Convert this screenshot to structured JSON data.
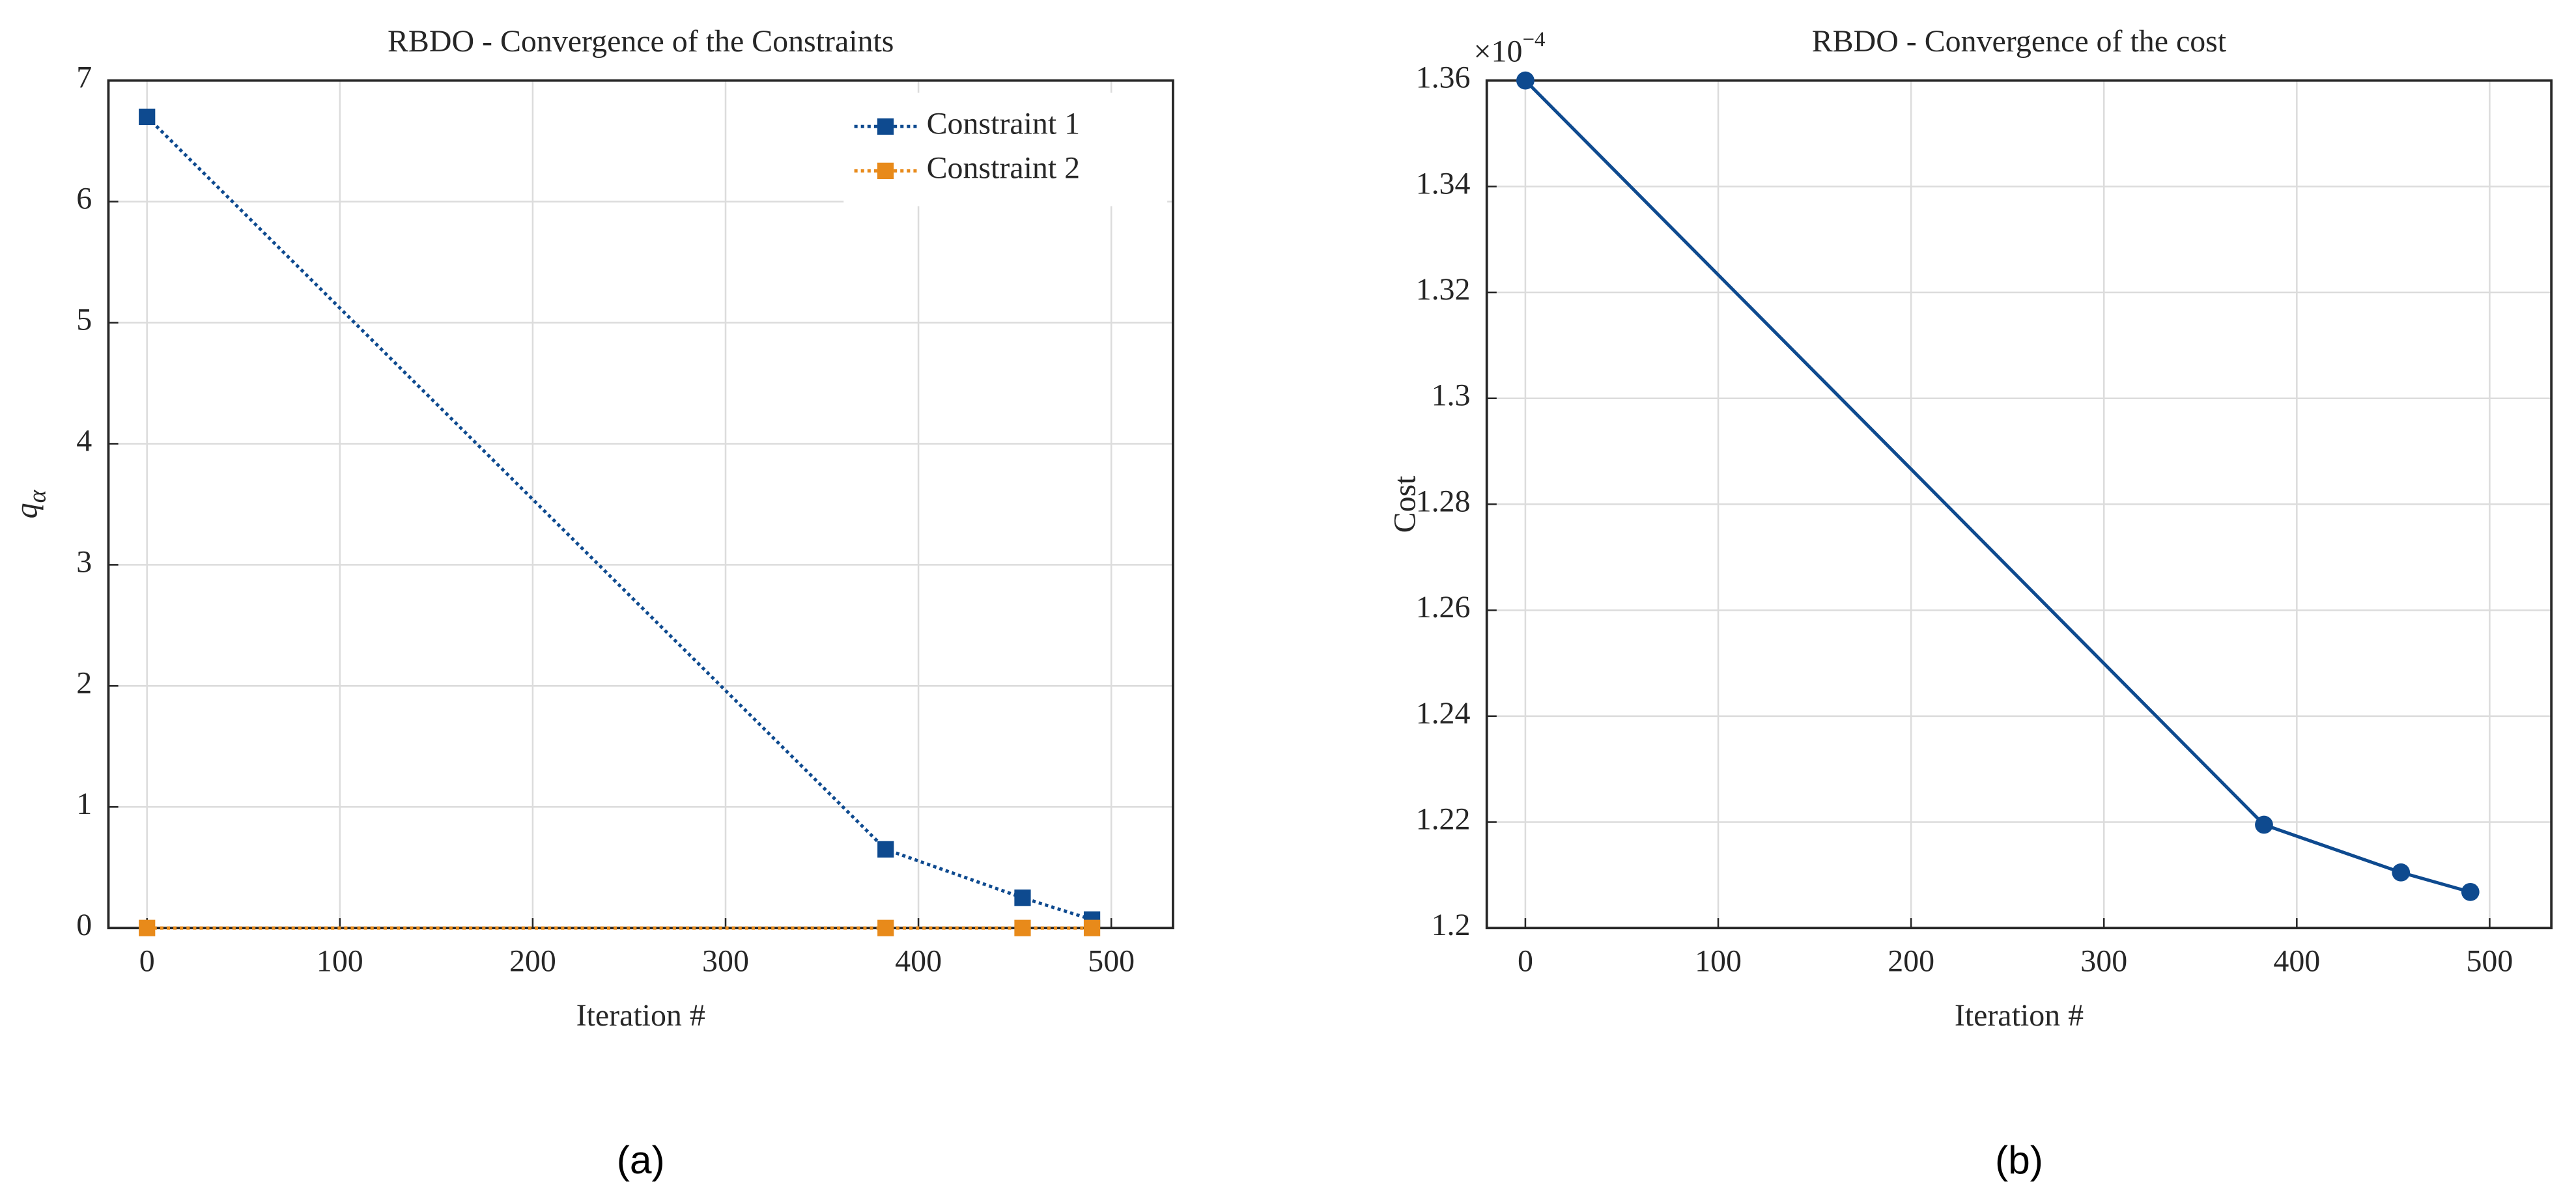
{
  "chart_data": [
    {
      "type": "line",
      "title": "RBDO - Convergence of the Constraints",
      "xlabel": "Iteration #",
      "ylabel": "q",
      "ylabel_subscript": "α",
      "caption": "(a)",
      "x": [
        0,
        383,
        454,
        490
      ],
      "series": [
        {
          "name": "Constraint 1",
          "color": "#0e4a8f",
          "values": [
            6.7,
            0.65,
            0.25,
            0.07
          ]
        },
        {
          "name": "Constraint 2",
          "color": "#e88a1a",
          "values": [
            0,
            0,
            0,
            0
          ]
        }
      ],
      "marker": "square",
      "line_style": "dotted",
      "xlim": [
        -20,
        532
      ],
      "xticks": [
        0,
        100,
        200,
        300,
        400,
        500
      ],
      "ylim": [
        0,
        7
      ],
      "yticks": [
        0,
        1,
        2,
        3,
        4,
        5,
        6,
        7
      ],
      "grid": true,
      "legend": "top-right"
    },
    {
      "type": "line",
      "title": "RBDO - Convergence of the cost",
      "xlabel": "Iteration #",
      "ylabel": "Cost",
      "caption": "(b)",
      "y_multiplier": {
        "base": "×10",
        "exponent": "−4"
      },
      "x": [
        0,
        383,
        454,
        490
      ],
      "series": [
        {
          "color": "#0e4a8f",
          "values": [
            1.36,
            1.2195,
            1.2105,
            1.2068
          ]
        }
      ],
      "marker": "circle",
      "line_style": "solid",
      "xlim": [
        -20,
        532
      ],
      "xticks": [
        0,
        100,
        200,
        300,
        400,
        500
      ],
      "ylim": [
        1.2,
        1.36
      ],
      "yticks": [
        1.2,
        1.22,
        1.24,
        1.26,
        1.28,
        1.3,
        1.32,
        1.34,
        1.36
      ],
      "grid": true
    }
  ]
}
